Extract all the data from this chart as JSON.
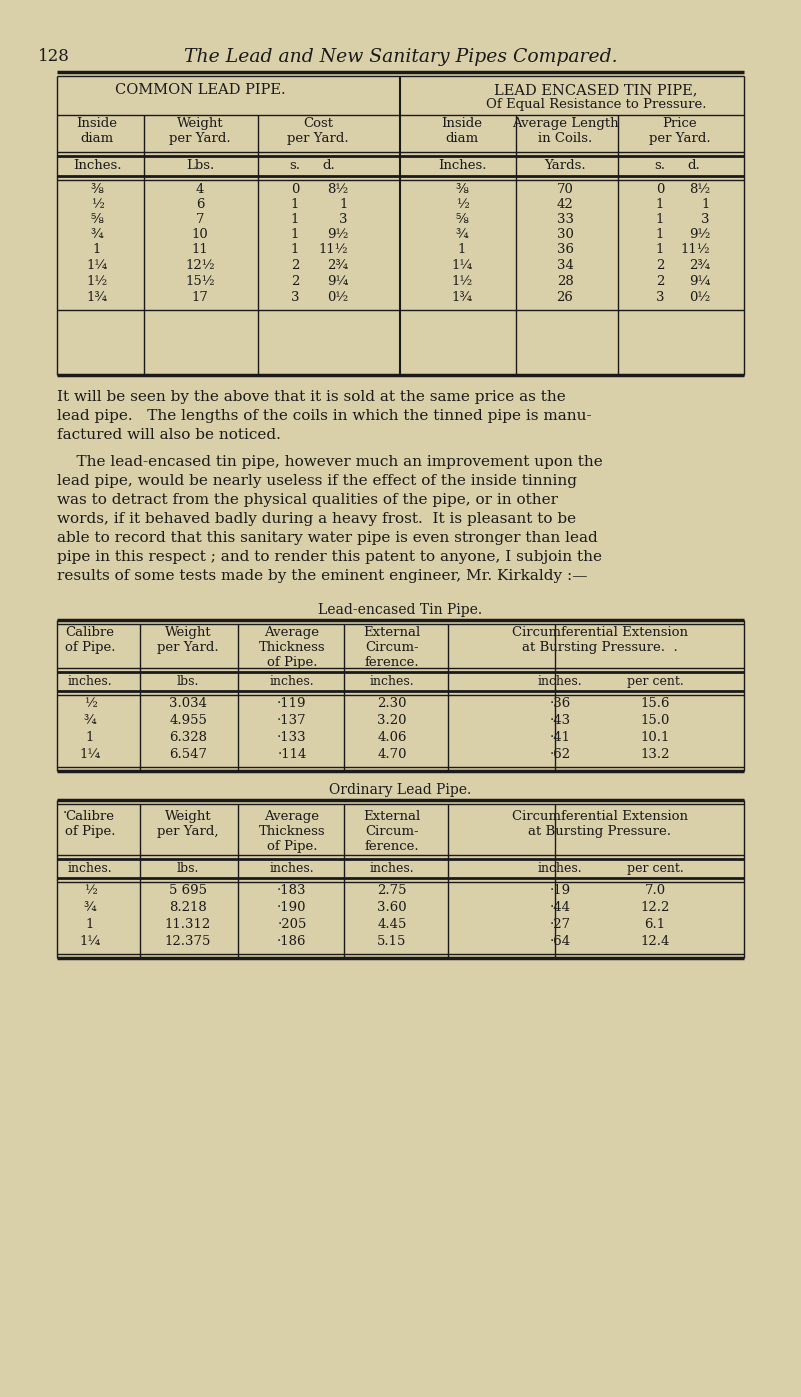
{
  "page_num": "128",
  "title": "The Lead and New Sanitary Pipes Compared.",
  "bg_color": "#d9cfa8",
  "text_color": "#1a1a1a",
  "table1_left_header": "COMMON LEAD PIPE.",
  "table1_right_header1": "LEAD ENCASED TIN PIPE,",
  "table1_right_header2": "Of Equal Resistance to Pressure.",
  "rows_left": [
    [
      "⅜",
      "4",
      "0",
      "8½"
    ],
    [
      "½",
      "6",
      "1",
      "1"
    ],
    [
      "⅝",
      "7",
      "1",
      "3"
    ],
    [
      "¾",
      "10",
      "1",
      "9½"
    ],
    [
      "1",
      "11",
      "1",
      "11½"
    ],
    [
      "1¼",
      "12½",
      "2",
      "2¾"
    ],
    [
      "1½",
      "15½",
      "2",
      "9¼"
    ],
    [
      "1¾",
      "17",
      "3",
      "0½"
    ]
  ],
  "rows_right": [
    [
      "⅜",
      "70",
      "0",
      "8½"
    ],
    [
      "½",
      "42",
      "1",
      "1"
    ],
    [
      "⅝",
      "33",
      "1",
      "3"
    ],
    [
      "¾",
      "30",
      "1",
      "9½"
    ],
    [
      "1",
      "36",
      "1",
      "11½"
    ],
    [
      "1¼",
      "34",
      "2",
      "2¾"
    ],
    [
      "1½",
      "28",
      "2",
      "9¼"
    ],
    [
      "1¾",
      "26",
      "3",
      "0½"
    ]
  ],
  "para1_lines": [
    "It will be seen by the above that it is sold at the same price as the",
    "lead pipe.   The lengths of the coils in which the tinned pipe is manu-",
    "factured will also be noticed."
  ],
  "para2_lines": [
    "    The lead-encased tin pipe, however much an improvement upon the",
    "lead pipe, would be nearly useless if the effect of the inside tinning",
    "was to detract from the physical qualities of the pipe, or in other",
    "words, if it behaved badly during a heavy frost.  It is pleasant to be",
    "able to record that this sanitary water pipe is even stronger than lead",
    "pipe in this respect ; and to render this patent to anyone, I subjoin the",
    "results of some tests made by the eminent engineer, Mr. Kirkaldy :—"
  ],
  "table2_title": "Lead-encased Tin Pipe.",
  "table2_rows": [
    [
      "½",
      "3.034",
      "·119",
      "2.30",
      "·36",
      "15.6"
    ],
    [
      "¾",
      "4.955",
      "·137",
      "3.20",
      "·43",
      "15.0"
    ],
    [
      "1",
      "6.328",
      "·133",
      "4.06",
      "·41",
      "10.1"
    ],
    [
      "1¼",
      "6.547",
      "·114",
      "4.70",
      "·62",
      "13.2"
    ]
  ],
  "table3_title": "Ordinary Lead Pipe.",
  "table3_rows": [
    [
      "½",
      "5 695",
      "·183",
      "2.75",
      "·19",
      "7.0"
    ],
    [
      "¾",
      "8.218",
      "·190",
      "3.60",
      "·44",
      "12.2"
    ],
    [
      "1",
      "11.312",
      "·205",
      "4.45",
      "·27",
      "6.1"
    ],
    [
      "1¼",
      "12.375",
      "·186",
      "5.15",
      "·64",
      "12.4"
    ]
  ]
}
